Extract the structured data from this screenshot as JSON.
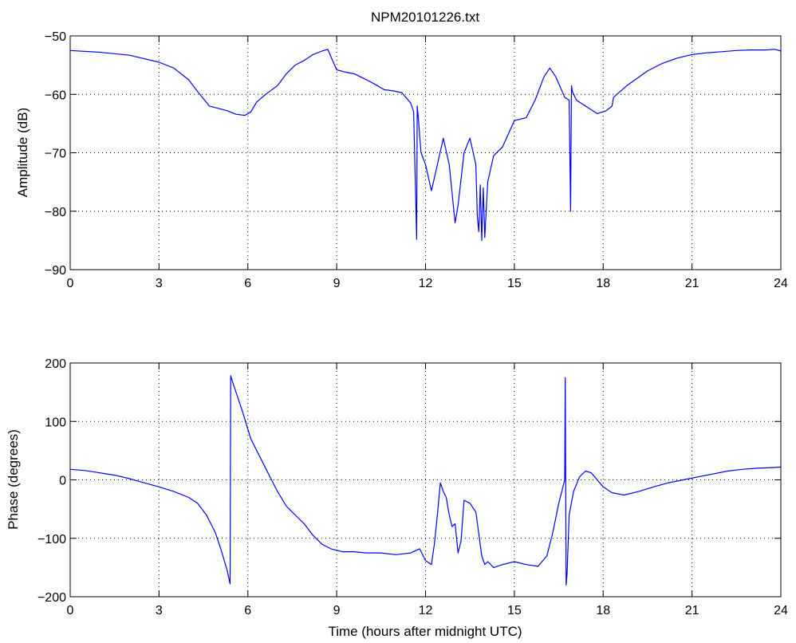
{
  "figure_title": "NPM20101226.txt",
  "chart_data": [
    {
      "type": "line",
      "title": "NPM20101226.txt",
      "xlabel": "",
      "ylabel": "Amplitude (dB)",
      "xlim": [
        0,
        24
      ],
      "ylim": [
        -90,
        -50
      ],
      "xticks": [
        0,
        3,
        6,
        9,
        12,
        15,
        18,
        21,
        24
      ],
      "yticks": [
        -90,
        -80,
        -70,
        -60,
        -50
      ],
      "xtick_labels": [
        "0",
        "3",
        "6",
        "9",
        "12",
        "15",
        "18",
        "21",
        "24"
      ],
      "ytick_labels": [
        "−90",
        "−80",
        "−70",
        "−60",
        "−50"
      ],
      "grid": true,
      "line_color": "#0000ff",
      "series": [
        {
          "x": [
            0,
            1,
            2,
            3,
            3.5,
            4,
            4.3,
            4.7,
            5,
            5.3,
            5.6,
            5.9,
            6.1,
            6.3,
            6.6,
            7,
            7.3,
            7.6,
            7.9,
            8.2,
            8.5,
            8.7,
            8.8,
            9,
            9.3,
            9.6,
            10,
            10.3,
            10.6,
            10.9,
            11.2,
            11.5,
            11.6,
            11.7,
            11.72,
            11.75,
            11.8,
            11.85,
            12,
            12.2,
            12.4,
            12.6,
            12.8,
            13,
            13.1,
            13.3,
            13.5,
            13.7,
            13.75,
            13.8,
            13.85,
            13.9,
            13.95,
            14,
            14.1,
            14.3,
            14.6,
            15,
            15.4,
            15.7,
            16,
            16.2,
            16.4,
            16.7,
            16.85,
            16.9,
            16.93,
            16.96,
            17.1,
            17.4,
            17.8,
            18.1,
            18.3,
            18.35,
            18.8,
            19.5,
            20,
            20.5,
            21,
            21.5,
            22,
            22.5,
            23,
            23.5,
            23.8,
            24
          ],
          "y": [
            -52.5,
            -52.8,
            -53.3,
            -54.5,
            -55.5,
            -57.5,
            -59.5,
            -62,
            -62.4,
            -62.8,
            -63.4,
            -63.6,
            -63,
            -61.3,
            -60,
            -58.5,
            -56.5,
            -55,
            -54.2,
            -53.2,
            -52.6,
            -52.3,
            -53.5,
            -55.8,
            -56.2,
            -56.5,
            -57.5,
            -58.3,
            -59.2,
            -59.4,
            -59.7,
            -61.5,
            -63,
            -84.8,
            -62,
            -63.5,
            -67,
            -70,
            -72,
            -76.5,
            -72,
            -67.5,
            -72,
            -82,
            -79,
            -70,
            -67.5,
            -72,
            -81,
            -83.5,
            -75.5,
            -85,
            -76,
            -84.5,
            -75,
            -70.5,
            -69,
            -64.5,
            -64,
            -61,
            -57,
            -55.5,
            -57,
            -60.5,
            -61,
            -80,
            -58.5,
            -59.5,
            -61,
            -62,
            -63.3,
            -62.8,
            -62,
            -60.5,
            -58.5,
            -56,
            -54.7,
            -53.8,
            -53.2,
            -52.9,
            -52.7,
            -52.5,
            -52.4,
            -52.4,
            -52.3,
            -52.6
          ]
        }
      ]
    },
    {
      "type": "line",
      "title": "",
      "xlabel": "Time (hours after midnight UTC)",
      "ylabel": "Phase (degrees)",
      "xlim": [
        0,
        24
      ],
      "ylim": [
        -200,
        200
      ],
      "xticks": [
        0,
        3,
        6,
        9,
        12,
        15,
        18,
        21,
        24
      ],
      "yticks": [
        -200,
        -100,
        0,
        100,
        200
      ],
      "xtick_labels": [
        "0",
        "3",
        "6",
        "9",
        "12",
        "15",
        "18",
        "21",
        "24"
      ],
      "ytick_labels": [
        "−200",
        "−100",
        "0",
        "100",
        "200"
      ],
      "grid": true,
      "line_color": "#0000ff",
      "series": [
        {
          "x": [
            0,
            0.5,
            1,
            1.5,
            2,
            2.5,
            3,
            3.5,
            4,
            4.3,
            4.6,
            4.9,
            5.1,
            5.3,
            5.4,
            5.42,
            5.5,
            5.8,
            6.1,
            6.4,
            6.7,
            7,
            7.3,
            7.6,
            7.9,
            8.2,
            8.5,
            8.8,
            9.2,
            9.6,
            10,
            10.5,
            11,
            11.5,
            11.8,
            12,
            12.2,
            12.3,
            12.4,
            12.5,
            12.6,
            12.7,
            12.8,
            12.9,
            13,
            13.1,
            13.2,
            13.3,
            13.5,
            13.7,
            13.9,
            14,
            14.1,
            14.3,
            14.6,
            15,
            15.4,
            15.8,
            16.1,
            16.3,
            16.5,
            16.7,
            16.72,
            16.75,
            16.78,
            16.85,
            17,
            17.2,
            17.4,
            17.6,
            17.8,
            18,
            18.3,
            18.7,
            19.2,
            19.7,
            20.2,
            20.7,
            21.2,
            21.7,
            22.2,
            22.7,
            23.2,
            23.7,
            24
          ],
          "y": [
            18,
            16,
            12,
            8,
            2,
            -5,
            -12,
            -20,
            -30,
            -40,
            -60,
            -90,
            -120,
            -155,
            -178,
            178,
            165,
            120,
            70,
            40,
            10,
            -20,
            -45,
            -60,
            -75,
            -95,
            -110,
            -118,
            -123,
            -123,
            -125,
            -125,
            -128,
            -125,
            -118,
            -138,
            -145,
            -110,
            -60,
            -5,
            -20,
            -30,
            -60,
            -80,
            -75,
            -125,
            -105,
            -35,
            -40,
            -55,
            -130,
            -145,
            -140,
            -150,
            -145,
            -140,
            -145,
            -148,
            -130,
            -90,
            -40,
            0,
            175,
            -180,
            -160,
            -60,
            -20,
            5,
            15,
            12,
            0,
            -12,
            -22,
            -26,
            -20,
            -12,
            -5,
            0,
            5,
            10,
            15,
            18,
            20,
            21,
            22
          ]
        }
      ]
    }
  ]
}
